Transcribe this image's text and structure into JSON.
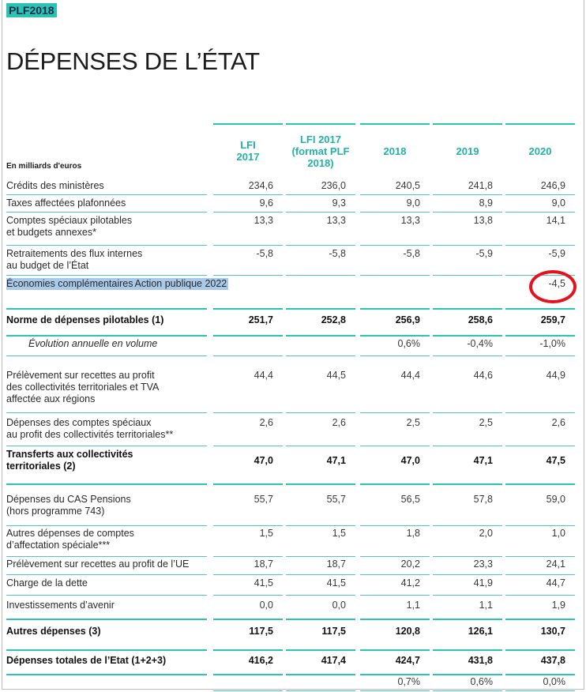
{
  "tag": "PLF2018",
  "title": "DÉPENSES DE L’ÉTAT",
  "unit": "En milliards d'euros",
  "columns": [
    {
      "lines": [
        "LFI",
        "2017"
      ]
    },
    {
      "lines": [
        "LFI 2017",
        "(format PLF",
        "2018)"
      ]
    },
    {
      "lines": [
        "2018"
      ]
    },
    {
      "lines": [
        "2019"
      ]
    },
    {
      "lines": [
        "2020"
      ]
    }
  ],
  "rows": [
    {
      "label": [
        "Crédits des ministères"
      ],
      "values": [
        "234,6",
        "236,0",
        "240,5",
        "241,8",
        "246,9"
      ],
      "style": "normal"
    },
    {
      "label": [
        "Taxes affectées plafonnées"
      ],
      "values": [
        "9,6",
        "9,3",
        "9,0",
        "8,9",
        "9,0"
      ],
      "style": "normal"
    },
    {
      "label": [
        "Comptes spéciaux pilotables",
        "et budgets annexes*"
      ],
      "values": [
        "13,3",
        "13,3",
        "13,3",
        "13,8",
        "14,1"
      ],
      "style": "normal"
    },
    {
      "label": [
        "Retraitements des flux internes",
        "au budget de l’État"
      ],
      "values": [
        "-5,8",
        "-5,8",
        "-5,8",
        "-5,9",
        "-5,9"
      ],
      "style": "normal"
    },
    {
      "label": [
        "Économies complémentaires",
        "Action publique 2022"
      ],
      "values": [
        "",
        "",
        "",
        "",
        "-4,5"
      ],
      "style": "highlight"
    },
    {
      "label": [
        "Norme de dépenses pilotables (1)"
      ],
      "values": [
        "251,7",
        "252,8",
        "256,9",
        "258,6",
        "259,7"
      ],
      "style": "bold"
    },
    {
      "label": [
        "Évolution annuelle en volume"
      ],
      "values": [
        "",
        "",
        "0,6%",
        "-0,4%",
        "-1,0%"
      ],
      "style": "italic"
    },
    {
      "label": [
        "Prélèvement sur recettes au profit",
        "des collectivités territoriales et TVA",
        "affectée aux régions"
      ],
      "values": [
        "44,4",
        "44,5",
        "44,4",
        "44,6",
        "44,9"
      ],
      "style": "normal"
    },
    {
      "label": [
        "Dépenses des comptes spéciaux",
        "au profit des collectivités territoriales**"
      ],
      "values": [
        "2,6",
        "2,6",
        "2,5",
        "2,5",
        "2,6"
      ],
      "style": "normal"
    },
    {
      "label": [
        "Transferts aux collectivités",
        "territoriales (2)"
      ],
      "values": [
        "47,0",
        "47,1",
        "47,0",
        "47,1",
        "47,5"
      ],
      "style": "bold"
    },
    {
      "label": [
        "Dépenses du CAS Pensions",
        "(hors programme 743)"
      ],
      "values": [
        "55,7",
        "55,7",
        "56,5",
        "57,8",
        "59,0"
      ],
      "style": "normal"
    },
    {
      "label": [
        "Autres dépenses de comptes",
        "d’affectation spéciale***"
      ],
      "values": [
        "1,5",
        "1,5",
        "1,8",
        "2,0",
        "1,0"
      ],
      "style": "normal"
    },
    {
      "label": [
        "Prélèvement sur recettes au profit de l’UE"
      ],
      "values": [
        "18,7",
        "18,7",
        "20,2",
        "23,3",
        "24,1"
      ],
      "style": "normal"
    },
    {
      "label": [
        "Charge de la dette"
      ],
      "values": [
        "41,5",
        "41,5",
        "41,2",
        "41,9",
        "44,7"
      ],
      "style": "normal"
    },
    {
      "label": [
        "Investissements d’avenir"
      ],
      "values": [
        "0,0",
        "0,0",
        "1,1",
        "1,1",
        "1,9"
      ],
      "style": "normal"
    },
    {
      "label": [
        "Autres dépenses (3)"
      ],
      "values": [
        "117,5",
        "117,5",
        "120,8",
        "126,1",
        "130,7"
      ],
      "style": "bold"
    },
    {
      "label": [
        "Dépenses totales de l’Etat (1+2+3)"
      ],
      "values": [
        "416,2",
        "417,4",
        "424,7",
        "431,8",
        "437,8"
      ],
      "style": "bold"
    },
    {
      "label": [],
      "values": [
        "",
        "",
        "0,7%",
        "0,6%",
        "0,0%"
      ],
      "style": "normal"
    }
  ]
}
